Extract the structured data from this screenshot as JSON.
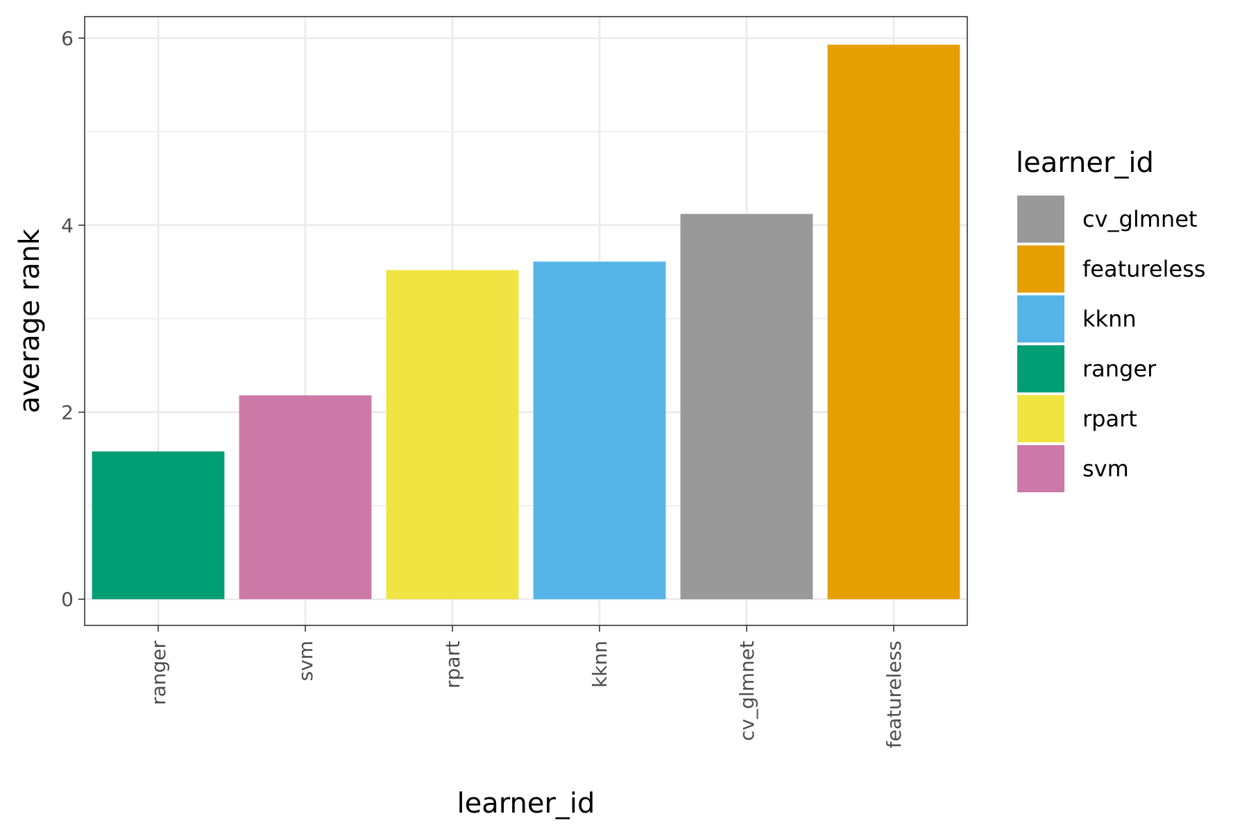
{
  "chart_data": {
    "type": "bar",
    "categories": [
      "ranger",
      "svm",
      "rpart",
      "kknn",
      "cv_glmnet",
      "featureless"
    ],
    "values": [
      1.58,
      2.18,
      3.52,
      3.61,
      4.12,
      5.93
    ],
    "colors": [
      "#009E73",
      "#CC79A7",
      "#F0E442",
      "#56B4E9",
      "#999999",
      "#E69F00"
    ],
    "xlabel": "learner_id",
    "ylabel": "average rank",
    "ylim": [
      -0.28,
      6.23
    ],
    "yticks": [
      0,
      2,
      4,
      6
    ],
    "ytick_labels": [
      "0",
      "2",
      "4",
      "6"
    ],
    "grid": true,
    "legend": {
      "title": "learner_id",
      "position": "right",
      "items": [
        {
          "label": "cv_glmnet",
          "color": "#999999"
        },
        {
          "label": "featureless",
          "color": "#E69F00"
        },
        {
          "label": "kknn",
          "color": "#56B4E9"
        },
        {
          "label": "ranger",
          "color": "#009E73"
        },
        {
          "label": "rpart",
          "color": "#F0E442"
        },
        {
          "label": "svm",
          "color": "#CC79A7"
        }
      ]
    }
  }
}
